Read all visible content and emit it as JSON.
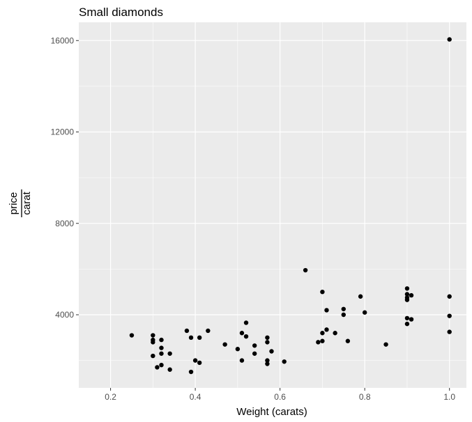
{
  "chart_data": {
    "type": "scatter",
    "title": "Small diamonds",
    "xlabel": "Weight (carats)",
    "ylabel_numerator": "price",
    "ylabel_denominator": "carat",
    "xlim": [
      0.125,
      1.04
    ],
    "ylim": [
      800,
      16800
    ],
    "x_ticks": [
      0.2,
      0.4,
      0.6,
      0.8,
      1.0
    ],
    "x_tick_labels": [
      "0.2",
      "0.4",
      "0.6",
      "0.8",
      "1.0"
    ],
    "y_ticks": [
      4000,
      8000,
      12000,
      16000
    ],
    "y_tick_labels": [
      "4000",
      "8000",
      "12000",
      "16000"
    ],
    "x_minor": [
      0.3,
      0.5,
      0.7,
      0.9
    ],
    "y_minor": [
      2000,
      6000,
      10000,
      14000
    ],
    "grid": true,
    "panel_background": "#ebebeb",
    "grid_color": "#ffffff",
    "point_color": "#000000",
    "points": [
      {
        "x": 0.25,
        "y": 3100
      },
      {
        "x": 0.3,
        "y": 3100
      },
      {
        "x": 0.3,
        "y": 2900
      },
      {
        "x": 0.3,
        "y": 2800
      },
      {
        "x": 0.3,
        "y": 2200
      },
      {
        "x": 0.31,
        "y": 1700
      },
      {
        "x": 0.32,
        "y": 2900
      },
      {
        "x": 0.32,
        "y": 2550
      },
      {
        "x": 0.32,
        "y": 2300
      },
      {
        "x": 0.32,
        "y": 1800
      },
      {
        "x": 0.34,
        "y": 2300
      },
      {
        "x": 0.34,
        "y": 1600
      },
      {
        "x": 0.38,
        "y": 3300
      },
      {
        "x": 0.39,
        "y": 3000
      },
      {
        "x": 0.39,
        "y": 1500
      },
      {
        "x": 0.4,
        "y": 2000
      },
      {
        "x": 0.41,
        "y": 3000
      },
      {
        "x": 0.41,
        "y": 1900
      },
      {
        "x": 0.43,
        "y": 3300
      },
      {
        "x": 0.47,
        "y": 2700
      },
      {
        "x": 0.5,
        "y": 2500
      },
      {
        "x": 0.51,
        "y": 3200
      },
      {
        "x": 0.51,
        "y": 2000
      },
      {
        "x": 0.52,
        "y": 3650
      },
      {
        "x": 0.52,
        "y": 3050
      },
      {
        "x": 0.54,
        "y": 2650
      },
      {
        "x": 0.54,
        "y": 2300
      },
      {
        "x": 0.57,
        "y": 3000
      },
      {
        "x": 0.57,
        "y": 2800
      },
      {
        "x": 0.57,
        "y": 2000
      },
      {
        "x": 0.57,
        "y": 1850
      },
      {
        "x": 0.58,
        "y": 2400
      },
      {
        "x": 0.61,
        "y": 1950
      },
      {
        "x": 0.66,
        "y": 5950
      },
      {
        "x": 0.69,
        "y": 2800
      },
      {
        "x": 0.7,
        "y": 5000
      },
      {
        "x": 0.7,
        "y": 3200
      },
      {
        "x": 0.7,
        "y": 2850
      },
      {
        "x": 0.71,
        "y": 4200
      },
      {
        "x": 0.71,
        "y": 3350
      },
      {
        "x": 0.73,
        "y": 3200
      },
      {
        "x": 0.75,
        "y": 4250
      },
      {
        "x": 0.75,
        "y": 4000
      },
      {
        "x": 0.76,
        "y": 2850
      },
      {
        "x": 0.79,
        "y": 4800
      },
      {
        "x": 0.8,
        "y": 4100
      },
      {
        "x": 0.85,
        "y": 2700
      },
      {
        "x": 0.9,
        "y": 5150
      },
      {
        "x": 0.9,
        "y": 4900
      },
      {
        "x": 0.9,
        "y": 4750
      },
      {
        "x": 0.9,
        "y": 4650
      },
      {
        "x": 0.9,
        "y": 3850
      },
      {
        "x": 0.9,
        "y": 3600
      },
      {
        "x": 0.91,
        "y": 4850
      },
      {
        "x": 0.91,
        "y": 3800
      },
      {
        "x": 1.0,
        "y": 16050
      },
      {
        "x": 1.0,
        "y": 4800
      },
      {
        "x": 1.0,
        "y": 3950
      },
      {
        "x": 1.0,
        "y": 3250
      }
    ]
  }
}
